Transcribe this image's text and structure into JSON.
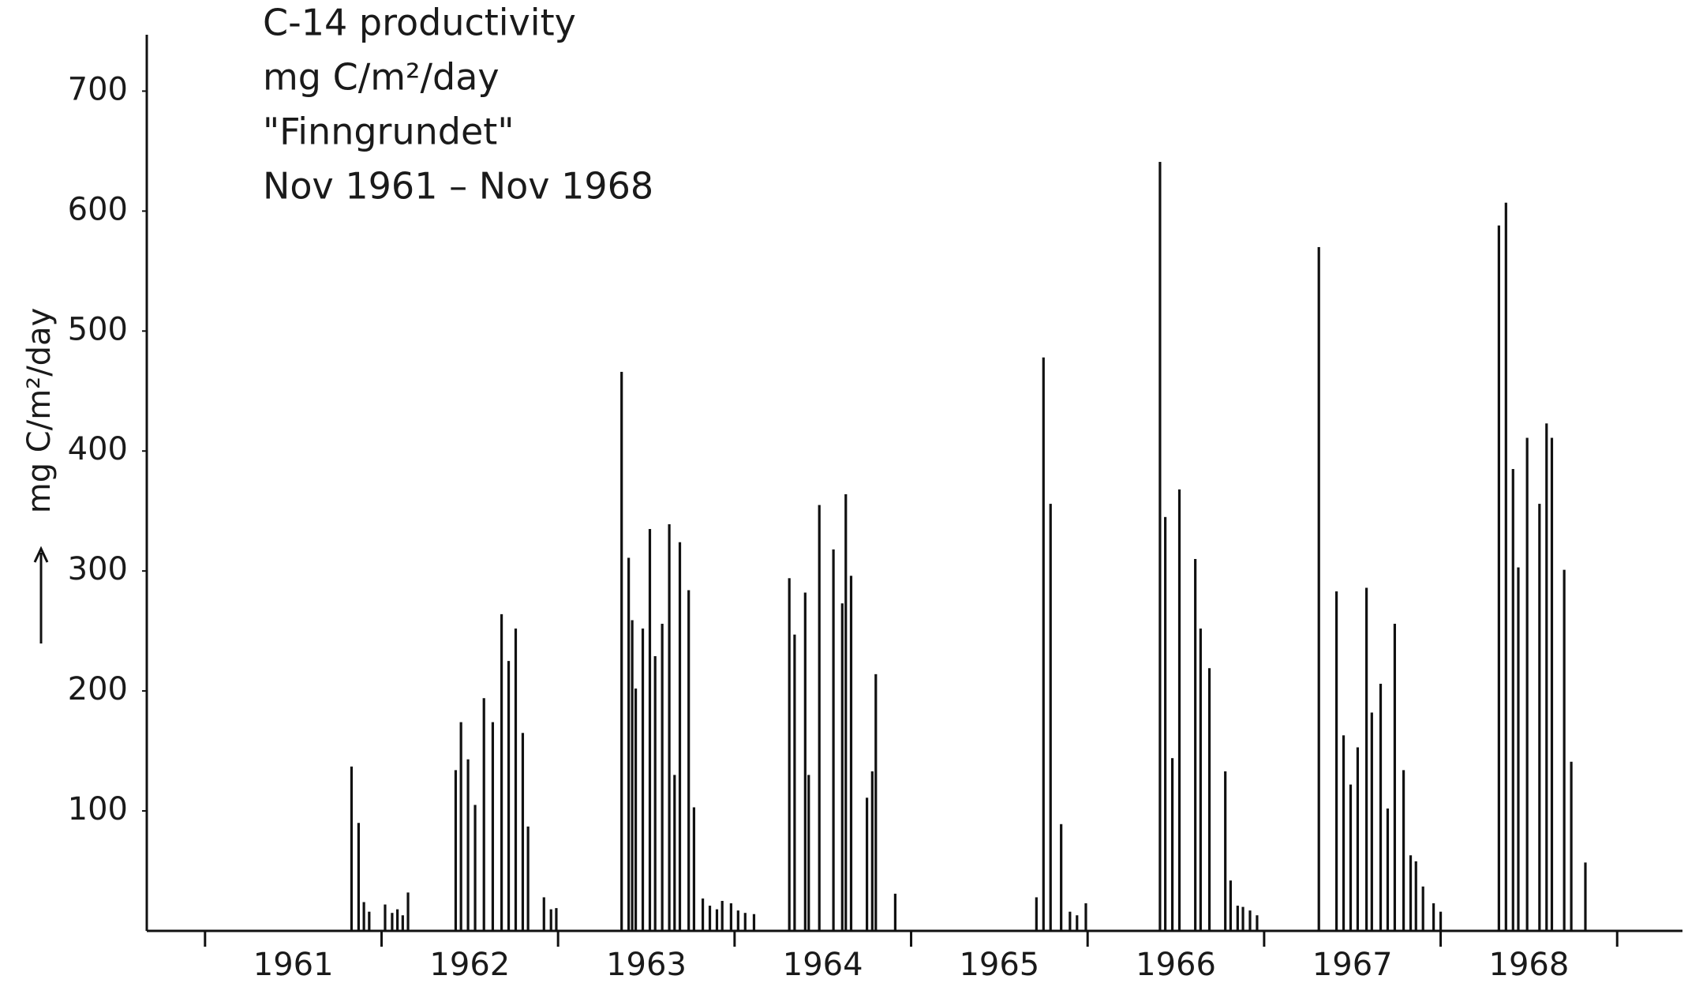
{
  "chart_data": {
    "type": "bar",
    "title_lines": [
      "C-14 productivity",
      "mg C/m²/day",
      "\"Finngrundet\"",
      "Nov 1961 – Nov 1968"
    ],
    "y_label": "mg C/m²/day",
    "color": "#111111",
    "x": [
      1961.83,
      1961.87,
      1961.9,
      1961.93,
      1962.02,
      1962.06,
      1962.09,
      1962.12,
      1962.15,
      1962.42,
      1962.45,
      1962.49,
      1962.53,
      1962.58,
      1962.63,
      1962.68,
      1962.72,
      1962.76,
      1962.8,
      1962.83,
      1962.92,
      1962.96,
      1962.99,
      1963.36,
      1963.4,
      1963.42,
      1963.44,
      1963.48,
      1963.52,
      1963.55,
      1963.59,
      1963.63,
      1963.66,
      1963.69,
      1963.74,
      1963.77,
      1963.82,
      1963.86,
      1963.9,
      1963.93,
      1963.98,
      1964.02,
      1964.06,
      1964.11,
      1964.31,
      1964.34,
      1964.4,
      1964.42,
      1964.48,
      1964.56,
      1964.61,
      1964.63,
      1964.66,
      1964.75,
      1964.78,
      1964.8,
      1964.91,
      1965.71,
      1965.75,
      1965.79,
      1965.85,
      1965.9,
      1965.94,
      1965.99,
      1966.41,
      1966.44,
      1966.48,
      1966.52,
      1966.61,
      1966.64,
      1966.69,
      1966.78,
      1966.81,
      1966.85,
      1966.88,
      1966.92,
      1966.96,
      1967.31,
      1967.41,
      1967.45,
      1967.49,
      1967.53,
      1967.58,
      1967.61,
      1967.66,
      1967.7,
      1967.74,
      1967.79,
      1967.83,
      1967.86,
      1967.9,
      1967.96,
      1968.0,
      1968.33,
      1968.37,
      1968.41,
      1968.44,
      1968.49,
      1968.56,
      1968.6,
      1968.63,
      1968.7,
      1968.74,
      1968.82
    ],
    "values": [
      137,
      90,
      24,
      16,
      22,
      15,
      18,
      13,
      32,
      134,
      174,
      143,
      105,
      194,
      174,
      264,
      225,
      252,
      165,
      87,
      28,
      18,
      19,
      466,
      311,
      259,
      202,
      252,
      335,
      229,
      256,
      339,
      130,
      324,
      284,
      103,
      27,
      21,
      18,
      25,
      23,
      17,
      15,
      14,
      294,
      247,
      282,
      130,
      355,
      318,
      273,
      364,
      296,
      111,
      133,
      214,
      31,
      28,
      478,
      356,
      89,
      16,
      13,
      23,
      641,
      345,
      144,
      368,
      310,
      252,
      219,
      133,
      42,
      21,
      20,
      17,
      13,
      570,
      283,
      163,
      122,
      153,
      286,
      182,
      206,
      102,
      256,
      134,
      63,
      58,
      37,
      23,
      16,
      588,
      607,
      385,
      303,
      411,
      356,
      423,
      411,
      301,
      141,
      57
    ],
    "xlim": [
      1960.67,
      1969.37
    ],
    "xticks": [
      {
        "value": 1961.5,
        "label": "1961"
      },
      {
        "value": 1962.5,
        "label": "1962"
      },
      {
        "value": 1963.5,
        "label": "1963"
      },
      {
        "value": 1964.5,
        "label": "1964"
      },
      {
        "value": 1965.5,
        "label": "1965"
      },
      {
        "value": 1966.5,
        "label": "1966"
      },
      {
        "value": 1967.5,
        "label": "1967"
      },
      {
        "value": 1968.5,
        "label": "1968"
      }
    ],
    "xtick_marks": [
      1961,
      1962,
      1963,
      1964,
      1965,
      1966,
      1967,
      1968,
      1969
    ],
    "ylim": [
      0,
      747
    ],
    "yticks": [
      100,
      200,
      300,
      400,
      500,
      600,
      700
    ],
    "grid": false
  }
}
